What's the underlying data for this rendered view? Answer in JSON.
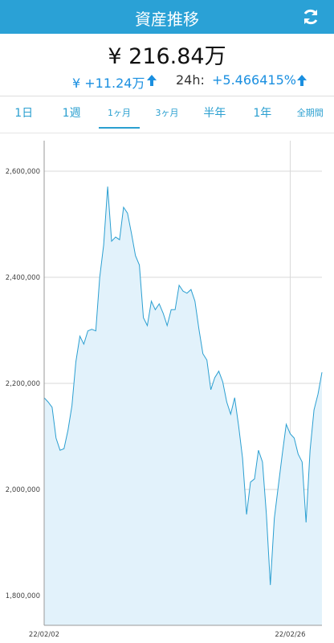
{
  "header": {
    "title": "資産推移"
  },
  "summary": {
    "total": "¥ 216.84万",
    "change": "¥ +11.24万",
    "period_label": "24h:",
    "period_change": "+5.466415%"
  },
  "tabs": {
    "items": [
      "1日",
      "1週",
      "1ヶ月",
      "3ヶ月",
      "半年",
      "1年",
      "全期間"
    ],
    "selected": 2
  },
  "chart_data": {
    "type": "area",
    "categories": [
      "22/02/02",
      null,
      null,
      null,
      null,
      null,
      null,
      null,
      null,
      null,
      null,
      null,
      null,
      null,
      null,
      null,
      null,
      null,
      null,
      null,
      null,
      null,
      null,
      null,
      null,
      null,
      null,
      null,
      null,
      null,
      null,
      null,
      null,
      null,
      null,
      null,
      null,
      null,
      null,
      null,
      null,
      null,
      null,
      null,
      null,
      null,
      null,
      null,
      null,
      null,
      null,
      null,
      null,
      null,
      null,
      null,
      null,
      null,
      null,
      null,
      null,
      null,
      "22/02/26",
      null,
      null,
      null,
      null,
      null,
      null,
      null,
      null
    ],
    "values": [
      2173000,
      2165000,
      2155000,
      2097000,
      2074000,
      2077000,
      2112000,
      2158000,
      2241000,
      2289000,
      2274000,
      2299000,
      2302000,
      2299000,
      2400000,
      2461000,
      2571000,
      2468000,
      2476000,
      2471000,
      2532000,
      2521000,
      2483000,
      2441000,
      2423000,
      2324000,
      2309000,
      2355000,
      2339000,
      2350000,
      2332000,
      2309000,
      2339000,
      2339000,
      2385000,
      2374000,
      2370000,
      2377000,
      2355000,
      2302000,
      2256000,
      2244000,
      2188000,
      2211000,
      2223000,
      2203000,
      2165000,
      2142000,
      2173000,
      2120000,
      2059000,
      1953000,
      2014000,
      2020000,
      2074000,
      2052000,
      1953000,
      1820000,
      1946000,
      2006000,
      2067000,
      2123000,
      2105000,
      2097000,
      2067000,
      2052000,
      1938000,
      2074000,
      2150000,
      2180000,
      2221000
    ],
    "color": "#2b9fd1",
    "fill_color": "#e2f2fb",
    "ylim": [
      1744000,
      2657600
    ],
    "yticks": [
      {
        "value": 1800000,
        "label": "1,800,000"
      },
      {
        "value": 2000000,
        "label": "2,000,000"
      },
      {
        "value": 2200000,
        "label": "2,200,000"
      },
      {
        "value": 2400000,
        "label": "2,400,000"
      },
      {
        "value": 2600000,
        "label": "2,600,000"
      }
    ],
    "grid": true
  }
}
